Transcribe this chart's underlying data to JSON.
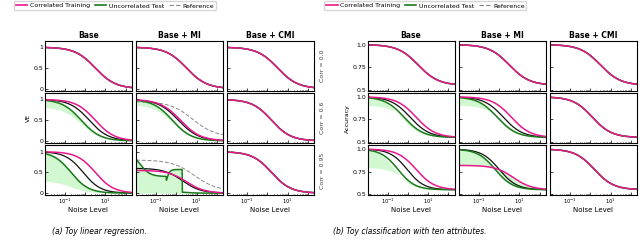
{
  "col_titles": [
    "Base",
    "Base + MI",
    "Base + CMI"
  ],
  "row_labels": [
    "Corr = 0.0",
    "Corr = 0.6",
    "Corr = 0.95"
  ],
  "ylabel_left": "VE",
  "ylabel_right": "Accuracy",
  "xlabel": "Noise Level",
  "caption_left": "(a) Toy linear regression.",
  "caption_right": "(b) Toy classification with ten attributes.",
  "color_corr": "#e8188c",
  "color_uncorr": "#1a7a1a",
  "color_black": "#111111",
  "color_ref": "#888888",
  "color_fill": "#90ee90",
  "legend_entries": [
    "Correlated Training",
    "Uncorrelated Test",
    "Reference"
  ]
}
